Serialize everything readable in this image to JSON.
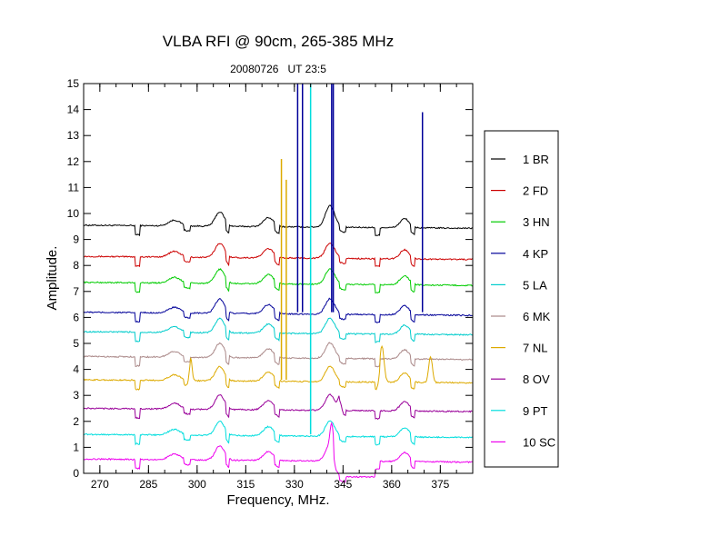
{
  "chart_data": {
    "type": "line",
    "title": "VLBA RFI @ 90cm, 265-385 MHz",
    "subtitle": "20080726   UT 23:5",
    "xlabel": "Frequency, MHz.",
    "ylabel": "Amplitude.",
    "xlim": [
      265,
      385
    ],
    "ylim": [
      0,
      15
    ],
    "xticks": [
      270,
      285,
      300,
      315,
      330,
      345,
      360,
      375
    ],
    "yticks": [
      0,
      1,
      2,
      3,
      4,
      5,
      6,
      7,
      8,
      9,
      10,
      11,
      12,
      13,
      14,
      15
    ],
    "legend_position": "right",
    "series": [
      {
        "name": "1 BR",
        "color": "#000000",
        "base": 9.55
      },
      {
        "name": "2 FD",
        "color": "#cc0000",
        "base": 8.35
      },
      {
        "name": "3 HN",
        "color": "#00cc00",
        "base": 7.35
      },
      {
        "name": "4 KP",
        "color": "#000099",
        "base": 6.2
      },
      {
        "name": "5 LA",
        "color": "#00cccc",
        "base": 5.45
      },
      {
        "name": "6 MK",
        "color": "#aa8888",
        "base": 4.5
      },
      {
        "name": "7 NL",
        "color": "#ddaa00",
        "base": 3.6
      },
      {
        "name": "8 OV",
        "color": "#990099",
        "base": 2.5
      },
      {
        "name": "9 PT",
        "color": "#00dddd",
        "base": 1.5
      },
      {
        "name": "10 SC",
        "color": "#ee00ee",
        "base": 0.55
      }
    ],
    "spikes": [
      {
        "series": "7 NL",
        "x": 326,
        "y": 12.1
      },
      {
        "series": "7 NL",
        "x": 327.5,
        "y": 11.3
      },
      {
        "series": "4 KP",
        "x": 331,
        "y": 15
      },
      {
        "series": "4 KP",
        "x": 332.5,
        "y": 15
      },
      {
        "series": "9 PT",
        "x": 335,
        "y": 15
      },
      {
        "series": "4 KP",
        "x": 341.5,
        "y": 15
      },
      {
        "series": "4 KP",
        "x": 342,
        "y": 15
      },
      {
        "series": "4 KP",
        "x": 369.5,
        "y": 13.9
      }
    ]
  }
}
